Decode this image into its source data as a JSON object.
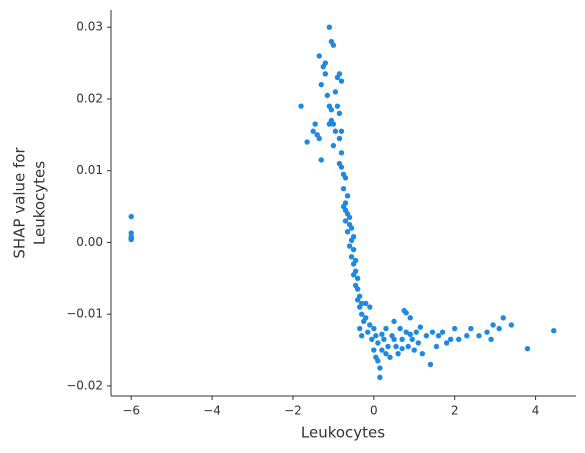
{
  "chart_data": {
    "type": "scatter",
    "xlabel": "Leukocytes",
    "ylabel": [
      "SHAP value for",
      "Leukocytes"
    ],
    "color": "#1e88e5",
    "xlim": [
      -6.5,
      5.0
    ],
    "ylim": [
      -0.0214,
      0.0324
    ],
    "xticks": [
      {
        "value": -6,
        "label": "−6"
      },
      {
        "value": -4,
        "label": "−4"
      },
      {
        "value": -2,
        "label": "−2"
      },
      0,
      2,
      4
    ],
    "yticks": [
      {
        "value": -0.02,
        "label": "−0.02"
      },
      {
        "value": -0.01,
        "label": "−0.01"
      },
      {
        "value": 0,
        "label": "0.00"
      },
      0.01,
      0.02,
      0.03
    ],
    "x": [
      -6,
      -6,
      -6,
      -6,
      -6,
      -6,
      -1.8,
      -1.65,
      -1.5,
      -1.45,
      -1.4,
      -1.35,
      -1.3,
      -1.35,
      -1.3,
      -1.25,
      -1.2,
      -1.1,
      -1.05,
      -1.0,
      -1.2,
      -1.15,
      -1.1,
      -1.05,
      -1.0,
      -1.1,
      -1.05,
      -0.95,
      -0.9,
      -0.85,
      -0.8,
      -0.95,
      -0.9,
      -0.85,
      -0.8,
      -1.0,
      -0.85,
      -0.8,
      -0.85,
      -0.8,
      -0.75,
      -0.7,
      -0.75,
      -0.65,
      -0.7,
      -0.75,
      -0.7,
      -0.65,
      -0.6,
      -0.7,
      -0.6,
      -0.55,
      -0.65,
      -0.5,
      -0.55,
      -0.6,
      -0.5,
      -0.55,
      -0.45,
      -0.5,
      -0.45,
      -0.5,
      -0.4,
      -0.45,
      -0.4,
      -0.35,
      -0.4,
      -0.3,
      -0.35,
      -0.3,
      -0.25,
      -0.35,
      -0.3,
      -0.2,
      -0.1,
      -0.2,
      -0.1,
      0,
      -0.15,
      0.05,
      -0.05,
      0.1,
      0,
      0.05,
      0.1,
      0.15,
      0.15,
      0.2,
      0.25,
      0.3,
      0.35,
      0.4,
      0.45,
      0.5,
      0.55,
      0.6,
      0.65,
      0.7,
      0.75,
      0.8,
      0.85,
      0.9,
      0.95,
      1.0,
      1.05,
      1.1,
      1.2,
      1.3,
      1.4,
      1.45,
      1.55,
      1.6,
      1.7,
      1.8,
      1.9,
      2.0,
      2.1,
      2.3,
      2.4,
      2.6,
      2.8,
      2.9,
      2.95,
      3.1,
      3.2,
      3.4,
      3.8,
      4.45,
      0.8,
      0.2,
      0.3,
      0.5,
      0.7,
      0.9,
      1.15
    ],
    "values": [
      0.0036,
      0.0013,
      0.0008,
      0.0005,
      0.0004,
      0.0006,
      0.019,
      0.014,
      0.0155,
      0.0165,
      0.015,
      0.0145,
      0.0115,
      0.026,
      0.022,
      0.0245,
      0.025,
      0.03,
      0.028,
      0.0275,
      0.0235,
      0.0205,
      0.019,
      0.0185,
      0.0165,
      0.0165,
      0.017,
      0.0155,
      0.023,
      0.0235,
      0.0225,
      0.021,
      0.019,
      0.018,
      0.0155,
      0.0135,
      0.0145,
      0.0125,
      0.011,
      0.0105,
      0.0095,
      0.009,
      0.0075,
      0.0065,
      0.0055,
      0.005,
      0.0045,
      0.004,
      0.0035,
      0.003,
      0.0025,
      0.002,
      0.0015,
      0.0008,
      0.0003,
      -0.0005,
      -0.001,
      -0.002,
      -0.0025,
      -0.003,
      -0.004,
      -0.0045,
      -0.005,
      -0.006,
      -0.0065,
      -0.0075,
      -0.008,
      -0.0085,
      -0.009,
      -0.01,
      -0.011,
      -0.012,
      -0.013,
      -0.0085,
      -0.009,
      -0.0105,
      -0.0115,
      -0.012,
      -0.0125,
      -0.013,
      -0.0135,
      -0.014,
      -0.015,
      -0.016,
      -0.0165,
      -0.0175,
      -0.0188,
      -0.015,
      -0.0135,
      -0.012,
      -0.0145,
      -0.016,
      -0.013,
      -0.011,
      -0.0145,
      -0.0155,
      -0.012,
      -0.0135,
      -0.0095,
      -0.0125,
      -0.0145,
      -0.0105,
      -0.0135,
      -0.015,
      -0.0125,
      -0.014,
      -0.0155,
      -0.013,
      -0.017,
      -0.0125,
      -0.0145,
      -0.013,
      -0.0125,
      -0.014,
      -0.0135,
      -0.012,
      -0.0135,
      -0.013,
      -0.012,
      -0.013,
      -0.0125,
      -0.0135,
      -0.0115,
      -0.012,
      -0.0105,
      -0.0115,
      -0.0148,
      -0.0123,
      -0.0098,
      -0.0128,
      -0.0155,
      -0.0135,
      -0.0148,
      -0.0128,
      -0.0118
    ]
  }
}
